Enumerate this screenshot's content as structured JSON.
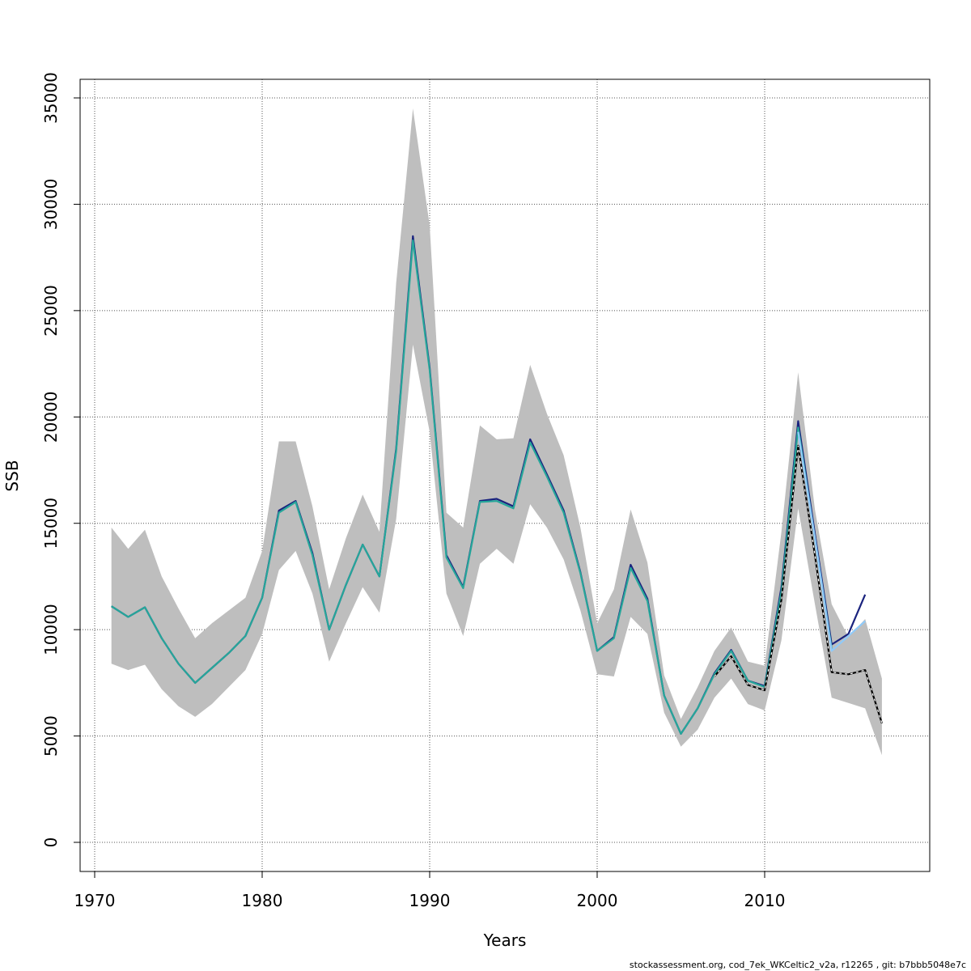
{
  "chart_data": {
    "type": "line",
    "title": "",
    "xlabel": "Years",
    "ylabel": "SSB",
    "xlim": [
      1970,
      2018
    ],
    "ylim": [
      0,
      35000
    ],
    "xticks": [
      1970,
      1980,
      1990,
      2000,
      2010
    ],
    "yticks": [
      0,
      5000,
      10000,
      15000,
      20000,
      25000,
      30000,
      35000
    ],
    "grid": true,
    "x": [
      1971,
      1972,
      1973,
      1974,
      1975,
      1976,
      1977,
      1978,
      1979,
      1980,
      1981,
      1982,
      1983,
      1984,
      1985,
      1986,
      1987,
      1988,
      1989,
      1990,
      1991,
      1992,
      1993,
      1994,
      1995,
      1996,
      1997,
      1998,
      1999,
      2000,
      2001,
      2002,
      2003,
      2004,
      2005,
      2006,
      2007,
      2008,
      2009,
      2010,
      2011,
      2012,
      2013,
      2014,
      2015,
      2016,
      2017
    ],
    "ci_lower": [
      8400,
      8100,
      8350,
      7200,
      6400,
      5900,
      6500,
      7300,
      8100,
      9800,
      12800,
      13700,
      11700,
      8500,
      10300,
      12000,
      10800,
      15200,
      23400,
      19300,
      11700,
      9700,
      13100,
      13800,
      13100,
      15900,
      14800,
      13300,
      10900,
      7900,
      7800,
      10600,
      9800,
      6100,
      4500,
      5300,
      6800,
      7700,
      6500,
      6200,
      9500,
      15700,
      11200,
      6800,
      6550,
      6300,
      4100
    ],
    "ci_upper": [
      14800,
      13800,
      14700,
      12500,
      11000,
      9600,
      10300,
      10900,
      11500,
      13700,
      18850,
      18850,
      15800,
      11900,
      14300,
      16350,
      14600,
      26300,
      34500,
      29000,
      15500,
      14800,
      19600,
      18950,
      19000,
      22450,
      20150,
      18200,
      14800,
      10300,
      11900,
      15650,
      13150,
      7850,
      5800,
      7300,
      9000,
      10100,
      8500,
      8300,
      14600,
      22100,
      15650,
      11200,
      9650,
      10500,
      7700
    ],
    "series": [
      {
        "name": "",
        "color": "#1a237e",
        "dashed": false,
        "values": [
          11100,
          10600,
          11050,
          9600,
          8400,
          7500,
          8200,
          8900,
          9700,
          11500,
          15600,
          16050,
          13600,
          10000,
          12100,
          14000,
          12500,
          18500,
          28500,
          22300,
          13500,
          12000,
          16050,
          16150,
          15800,
          18950,
          17300,
          15600,
          12700,
          9000,
          9650,
          13050,
          11450,
          6900,
          5100,
          6300,
          7950,
          9050,
          7600,
          7350,
          12000,
          19800,
          14500,
          9300,
          9800,
          11650,
          null
        ]
      },
      {
        "name": "",
        "color": "#26a69a",
        "dashed": false,
        "values": [
          11100,
          10600,
          11050,
          9600,
          8400,
          7500,
          8200,
          8900,
          9700,
          11500,
          15500,
          16000,
          13500,
          10000,
          12100,
          14000,
          12500,
          18400,
          28300,
          22200,
          13400,
          11950,
          16000,
          16050,
          15700,
          18800,
          17200,
          15500,
          12650,
          9000,
          9600,
          12900,
          11350,
          6900,
          5100,
          6300,
          7900,
          9000,
          7600,
          7300,
          11800,
          19500,
          14300,
          9100,
          null,
          null,
          null
        ]
      },
      {
        "name": "",
        "color": "#90caf9",
        "dashed": false,
        "values": [
          null,
          null,
          null,
          null,
          null,
          null,
          null,
          null,
          null,
          null,
          null,
          null,
          null,
          null,
          null,
          null,
          null,
          null,
          null,
          null,
          null,
          null,
          null,
          null,
          null,
          null,
          null,
          null,
          null,
          null,
          null,
          null,
          null,
          null,
          null,
          null,
          null,
          null,
          null,
          null,
          null,
          19300,
          14300,
          9000,
          9700,
          10400,
          null
        ]
      },
      {
        "name": "",
        "color": "#000000",
        "dashed": true,
        "values": [
          null,
          null,
          null,
          null,
          null,
          null,
          null,
          null,
          null,
          null,
          null,
          null,
          null,
          null,
          null,
          null,
          null,
          null,
          null,
          null,
          null,
          null,
          null,
          null,
          null,
          null,
          null,
          null,
          null,
          null,
          null,
          null,
          null,
          null,
          null,
          null,
          7800,
          8750,
          7400,
          7150,
          11400,
          18650,
          13500,
          8000,
          7900,
          8100,
          5600
        ]
      }
    ]
  },
  "footer": "stockassessment.org, cod_7ek_WKCeltic2_v2a, r12265 , git: b7bbb5048e7c",
  "colors": {
    "ci_band": "#bebebe",
    "grid": "#555555"
  }
}
